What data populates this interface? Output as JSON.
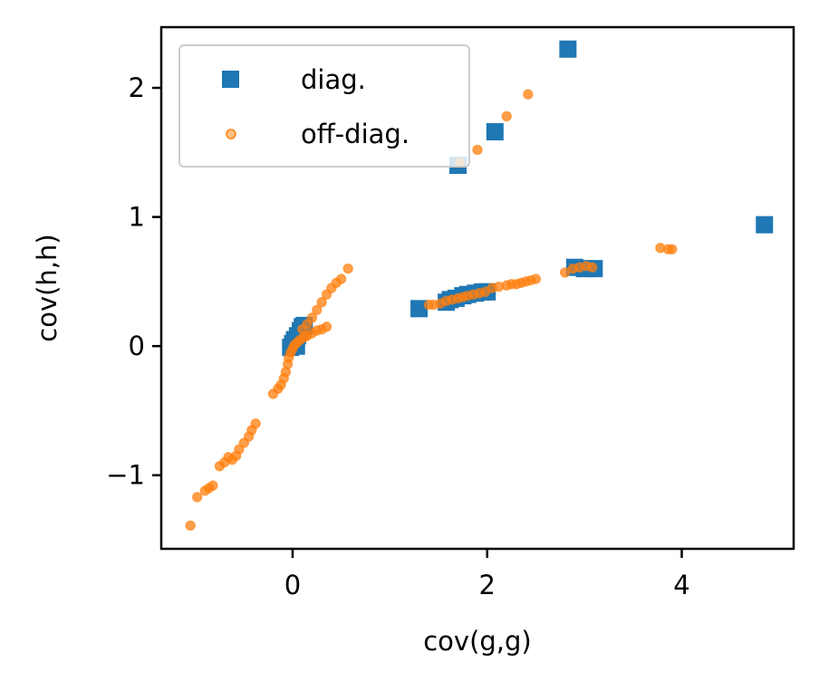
{
  "chart_data": {
    "type": "scatter",
    "xlabel": "cov(g,g)",
    "ylabel": "cov(h,h)",
    "xlim": [
      -1.35,
      5.15
    ],
    "ylim": [
      -1.57,
      2.47
    ],
    "x_ticks": [
      0,
      2,
      4
    ],
    "x_tick_labels": [
      "0",
      "2",
      "4"
    ],
    "y_ticks": [
      -1,
      0,
      1,
      2
    ],
    "y_tick_labels": [
      "−1",
      "0",
      "1",
      "2"
    ],
    "grid": false,
    "legend_placement": "top-left",
    "series": [
      {
        "name": "diag.",
        "marker": "square",
        "color": "#1f77b4",
        "points": [
          [
            2.83,
            2.3
          ],
          [
            2.08,
            1.66
          ],
          [
            1.7,
            1.4
          ],
          [
            4.85,
            0.94
          ],
          [
            1.3,
            0.29
          ],
          [
            1.58,
            0.34
          ],
          [
            1.62,
            0.36
          ],
          [
            1.68,
            0.37
          ],
          [
            1.75,
            0.39
          ],
          [
            1.8,
            0.4
          ],
          [
            1.88,
            0.41
          ],
          [
            1.95,
            0.42
          ],
          [
            2.0,
            0.42
          ],
          [
            2.9,
            0.61
          ],
          [
            3.0,
            0.6
          ],
          [
            3.1,
            0.6
          ],
          [
            0.0,
            0.02
          ],
          [
            0.02,
            0.05
          ],
          [
            0.05,
            0.08
          ],
          [
            0.08,
            0.12
          ],
          [
            0.1,
            0.15
          ],
          [
            0.12,
            0.16
          ],
          [
            -0.02,
            -0.01
          ],
          [
            0.04,
            0.0
          ]
        ]
      },
      {
        "name": "off-diag.",
        "marker": "circle",
        "color": "#ff7f0e",
        "points": [
          [
            2.42,
            1.95
          ],
          [
            2.2,
            1.78
          ],
          [
            1.9,
            1.52
          ],
          [
            1.72,
            1.42
          ],
          [
            3.78,
            0.76
          ],
          [
            3.86,
            0.75
          ],
          [
            3.9,
            0.75
          ],
          [
            2.8,
            0.57
          ],
          [
            2.88,
            0.6
          ],
          [
            2.95,
            0.61
          ],
          [
            3.02,
            0.62
          ],
          [
            3.08,
            0.61
          ],
          [
            2.5,
            0.52
          ],
          [
            2.45,
            0.51
          ],
          [
            2.4,
            0.5
          ],
          [
            2.35,
            0.49
          ],
          [
            2.3,
            0.48
          ],
          [
            2.25,
            0.48
          ],
          [
            2.2,
            0.47
          ],
          [
            2.12,
            0.46
          ],
          [
            2.05,
            0.45
          ],
          [
            1.98,
            0.42
          ],
          [
            1.92,
            0.41
          ],
          [
            1.86,
            0.4
          ],
          [
            1.8,
            0.39
          ],
          [
            1.75,
            0.38
          ],
          [
            1.7,
            0.37
          ],
          [
            1.64,
            0.36
          ],
          [
            1.58,
            0.35
          ],
          [
            1.52,
            0.33
          ],
          [
            1.45,
            0.32
          ],
          [
            1.4,
            0.32
          ],
          [
            0.57,
            0.6
          ],
          [
            0.5,
            0.52
          ],
          [
            0.45,
            0.49
          ],
          [
            0.4,
            0.45
          ],
          [
            0.35,
            0.4
          ],
          [
            0.3,
            0.34
          ],
          [
            0.25,
            0.28
          ],
          [
            0.2,
            0.22
          ],
          [
            0.15,
            0.17
          ],
          [
            0.1,
            0.13
          ],
          [
            0.35,
            0.15
          ],
          [
            0.3,
            0.13
          ],
          [
            0.25,
            0.12
          ],
          [
            0.2,
            0.1
          ],
          [
            0.15,
            0.08
          ],
          [
            0.12,
            0.07
          ],
          [
            0.08,
            0.05
          ],
          [
            0.05,
            0.03
          ],
          [
            0.02,
            0.01
          ],
          [
            0.0,
            -0.02
          ],
          [
            -0.02,
            -0.05
          ],
          [
            -0.04,
            -0.09
          ],
          [
            -0.05,
            -0.14
          ],
          [
            -0.07,
            -0.2
          ],
          [
            -0.09,
            -0.25
          ],
          [
            -0.12,
            -0.3
          ],
          [
            -0.15,
            -0.33
          ],
          [
            -0.2,
            -0.37
          ],
          [
            -0.38,
            -0.6
          ],
          [
            -0.42,
            -0.65
          ],
          [
            -0.45,
            -0.7
          ],
          [
            -0.5,
            -0.75
          ],
          [
            -0.55,
            -0.8
          ],
          [
            -0.58,
            -0.85
          ],
          [
            -0.62,
            -0.88
          ],
          [
            -0.66,
            -0.86
          ],
          [
            -0.7,
            -0.9
          ],
          [
            -0.75,
            -0.93
          ],
          [
            -0.82,
            -1.08
          ],
          [
            -0.86,
            -1.1
          ],
          [
            -0.9,
            -1.12
          ],
          [
            -0.98,
            -1.17
          ],
          [
            -1.05,
            -1.39
          ]
        ]
      }
    ]
  }
}
